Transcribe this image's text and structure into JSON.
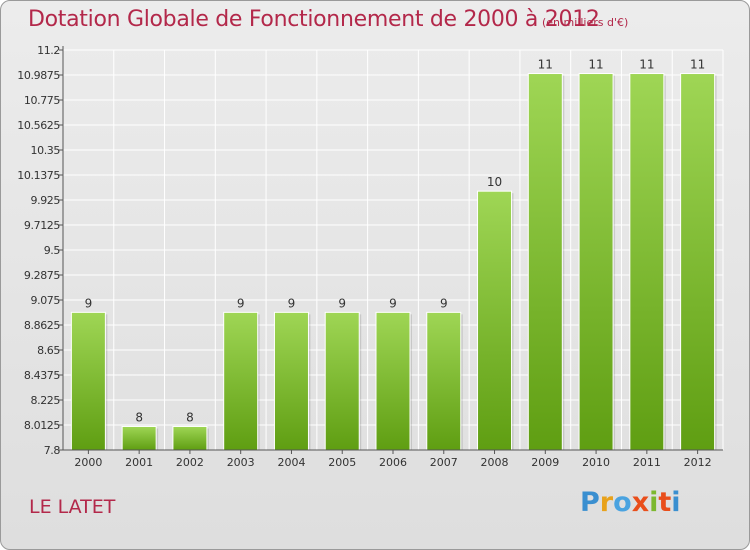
{
  "chart_data": {
    "type": "bar",
    "title": "Dotation Globale de Fonctionnement de 2000 à 2012",
    "subtitle": "(en milliers d'€)",
    "xlabel": "",
    "ylabel": "",
    "categories": [
      "2000",
      "2001",
      "2002",
      "2003",
      "2004",
      "2005",
      "2006",
      "2007",
      "2008",
      "2009",
      "2010",
      "2011",
      "2012"
    ],
    "values": [
      9,
      8,
      8,
      9,
      9,
      9,
      9,
      9,
      10,
      11,
      11,
      11,
      11
    ],
    "bar_heights": [
      8.97,
      8.0,
      8.0,
      8.97,
      8.97,
      8.97,
      8.97,
      8.97,
      10.0,
      11.0,
      11.0,
      11.0,
      11.0
    ],
    "data_labels": [
      "9",
      "8",
      "8",
      "9",
      "9",
      "9",
      "9",
      "9",
      "10",
      "11",
      "11",
      "11",
      "11"
    ],
    "ylim": [
      7.8,
      11.2
    ],
    "yticks": [
      7.8,
      8.0125,
      8.225,
      8.4375,
      8.65,
      8.8625,
      9.075,
      9.2875,
      9.5,
      9.7125,
      9.925,
      10.1375,
      10.35,
      10.5625,
      10.775,
      10.9875,
      11.2
    ],
    "ytick_labels": [
      "7.8",
      "8.0125",
      "8.225",
      "8.4375",
      "8.65",
      "8.8625",
      "9.075",
      "9.2875",
      "9.5",
      "9.7125",
      "9.925",
      "10.1375",
      "10.35",
      "10.5625",
      "10.775",
      "10.9875",
      "11.2"
    ],
    "grid": true,
    "legend": "none",
    "colors": {
      "bar_top": "#9fd655",
      "bar_bottom": "#5f9e12",
      "grid": "#ffffff",
      "axis": "#555555",
      "tick_text": "#333333"
    }
  },
  "footer": {
    "location": "LE LATET",
    "logo_letters": [
      "P",
      "r",
      "o",
      "x",
      "i",
      "t",
      "i"
    ],
    "logo_colors": [
      "#3a8fd0",
      "#e8a21b",
      "#4aa3e0",
      "#e94e1b",
      "#7cb82f",
      "#e94e1b",
      "#3a8fd0"
    ]
  },
  "colors": {
    "accent": "#b3284a"
  }
}
